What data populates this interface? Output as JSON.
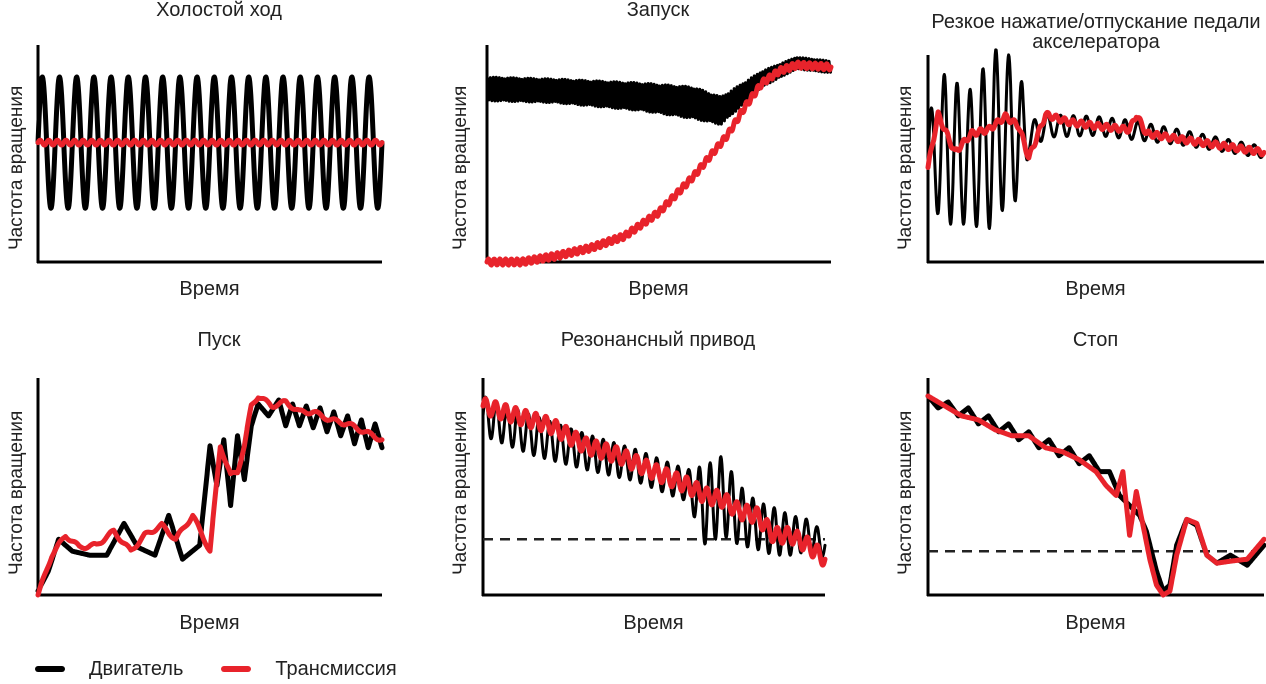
{
  "legend": {
    "engine": "Двигатель",
    "transmission": "Трансмиссия"
  },
  "colors": {
    "engine": "#000000",
    "transmission": "#e8232b",
    "threshold": "#222222"
  },
  "chart_data": [
    {
      "type": "line",
      "title": "Холостой ход",
      "xlabel": "Время",
      "ylabel": "Частота вращения",
      "xlim": [
        0,
        1
      ],
      "ylim": [
        0,
        1
      ],
      "series": [
        {
          "name": "Двигатель",
          "shape": "sine",
          "x": [
            0,
            1
          ],
          "center": [
            0.6,
            0.6
          ],
          "amplitude": [
            0.33,
            0.33
          ],
          "cycles": 20
        },
        {
          "name": "Трансмиссия",
          "x": [
            0,
            0.25,
            0.5,
            0.75,
            1
          ],
          "y": [
            0.6,
            0.6,
            0.6,
            0.6,
            0.6
          ],
          "ripple": 0.012,
          "cycles": 40
        }
      ]
    },
    {
      "type": "line",
      "title": "Запуск",
      "xlabel": "Время",
      "ylabel": "Частота вращения",
      "xlim": [
        0,
        1
      ],
      "ylim": [
        0,
        1
      ],
      "series": [
        {
          "name": "Двигатель",
          "shape": "band",
          "x": [
            0,
            0.2,
            0.45,
            0.6,
            0.68,
            0.8,
            0.9,
            1
          ],
          "center": [
            0.87,
            0.86,
            0.83,
            0.8,
            0.76,
            0.92,
            1.0,
            0.98
          ],
          "halfwidth": [
            0.06,
            0.06,
            0.07,
            0.08,
            0.07,
            0.04,
            0.03,
            0.03
          ],
          "cycles": 120
        },
        {
          "name": "Трансмиссия",
          "x": [
            0,
            0.1,
            0.2,
            0.3,
            0.4,
            0.5,
            0.6,
            0.7,
            0.75,
            0.8,
            0.85,
            0.9,
            1
          ],
          "y": [
            0.0,
            0.0,
            0.03,
            0.07,
            0.13,
            0.25,
            0.43,
            0.64,
            0.78,
            0.9,
            0.96,
            0.99,
            0.98
          ],
          "ripple": 0.015,
          "cycles": 60
        }
      ]
    },
    {
      "type": "line",
      "title": "Резкое нажатие/отпускание педали акселератора",
      "xlabel": "Время",
      "ylabel": "Частота вращения",
      "xlim": [
        0,
        1
      ],
      "ylim": [
        0,
        1
      ],
      "series": [
        {
          "name": "Двигатель",
          "shape": "band",
          "x": [
            0,
            0.05,
            0.12,
            0.18,
            0.22,
            0.28,
            0.3,
            0.35,
            0.5,
            0.6,
            0.75,
            1
          ],
          "center": [
            0.55,
            0.6,
            0.55,
            0.62,
            0.72,
            0.65,
            0.66,
            0.72,
            0.72,
            0.7,
            0.66,
            0.58
          ],
          "halfwidth": [
            0.22,
            0.4,
            0.35,
            0.45,
            0.45,
            0.3,
            0.08,
            0.06,
            0.05,
            0.05,
            0.04,
            0.03
          ],
          "cycles": 26
        },
        {
          "name": "Трансмиссия",
          "x": [
            0,
            0.03,
            0.08,
            0.13,
            0.18,
            0.23,
            0.27,
            0.3,
            0.35,
            0.42,
            0.5,
            0.6,
            0.62,
            0.65,
            0.75,
            1
          ],
          "y": [
            0.5,
            0.78,
            0.58,
            0.68,
            0.7,
            0.77,
            0.72,
            0.55,
            0.78,
            0.74,
            0.72,
            0.7,
            0.78,
            0.68,
            0.65,
            0.58
          ],
          "ripple": 0.015,
          "cycles": 40
        }
      ]
    },
    {
      "type": "line",
      "title": "Пуск",
      "xlabel": "Время",
      "ylabel": "Частота вращения",
      "xlim": [
        0,
        1
      ],
      "ylim": [
        0,
        1
      ],
      "series": [
        {
          "name": "Двигатель",
          "x": [
            0,
            0.03,
            0.06,
            0.1,
            0.15,
            0.2,
            0.25,
            0.29,
            0.34,
            0.38,
            0.42,
            0.47,
            0.5,
            0.52,
            0.54,
            0.56,
            0.58,
            0.6,
            0.62,
            0.64,
            0.67,
            0.7,
            0.72,
            0.74,
            0.76,
            0.78,
            0.8,
            0.82,
            0.84,
            0.86,
            0.88,
            0.9,
            0.92,
            0.94,
            0.96,
            0.98,
            1
          ],
          "y": [
            0.02,
            0.12,
            0.28,
            0.22,
            0.2,
            0.2,
            0.36,
            0.24,
            0.2,
            0.4,
            0.18,
            0.25,
            0.75,
            0.55,
            0.78,
            0.45,
            0.8,
            0.58,
            0.85,
            0.96,
            0.9,
            0.98,
            0.85,
            0.96,
            0.85,
            0.95,
            0.84,
            0.94,
            0.82,
            0.92,
            0.8,
            0.9,
            0.76,
            0.88,
            0.74,
            0.86,
            0.74
          ]
        },
        {
          "name": "Трансмиссия",
          "x": [
            0,
            0.04,
            0.08,
            0.12,
            0.17,
            0.22,
            0.27,
            0.31,
            0.36,
            0.4,
            0.45,
            0.5,
            0.53,
            0.56,
            0.58,
            0.6,
            0.62,
            0.64,
            0.68,
            0.72,
            0.76,
            0.8,
            0.85,
            0.9,
            0.95,
            1
          ],
          "y": [
            0.0,
            0.2,
            0.3,
            0.24,
            0.25,
            0.32,
            0.22,
            0.3,
            0.35,
            0.28,
            0.4,
            0.22,
            0.75,
            0.6,
            0.62,
            0.75,
            0.95,
            1.0,
            0.95,
            0.97,
            0.92,
            0.92,
            0.88,
            0.86,
            0.82,
            0.78
          ],
          "ripple": 0.01,
          "cycles": 20
        }
      ]
    },
    {
      "type": "line",
      "title": "Резонансный привод",
      "xlabel": "Время",
      "ylabel": "Частота вращения",
      "xlim": [
        0,
        1
      ],
      "ylim": [
        0,
        1
      ],
      "threshold": 0.28,
      "series": [
        {
          "name": "Двигатель",
          "shape": "band",
          "x": [
            0,
            0.15,
            0.3,
            0.45,
            0.55,
            0.6,
            0.65,
            0.7,
            0.75,
            0.8,
            0.85,
            0.9,
            0.95,
            1
          ],
          "center": [
            0.9,
            0.8,
            0.72,
            0.65,
            0.58,
            0.55,
            0.45,
            0.5,
            0.4,
            0.35,
            0.32,
            0.3,
            0.3,
            0.25
          ],
          "halfwidth": [
            0.1,
            0.1,
            0.09,
            0.08,
            0.08,
            0.08,
            0.2,
            0.2,
            0.15,
            0.12,
            0.12,
            0.1,
            0.08,
            0.06
          ],
          "cycles": 32
        },
        {
          "name": "Трансмиссия",
          "x": [
            0,
            0.1,
            0.2,
            0.3,
            0.4,
            0.5,
            0.6,
            0.65,
            0.7,
            0.75,
            0.8,
            0.85,
            0.9,
            0.95,
            1
          ],
          "y": [
            0.95,
            0.9,
            0.85,
            0.75,
            0.7,
            0.62,
            0.55,
            0.5,
            0.48,
            0.42,
            0.4,
            0.3,
            0.3,
            0.25,
            0.18
          ],
          "ripple": 0.04,
          "cycles": 34
        }
      ]
    },
    {
      "type": "line",
      "title": "Стоп",
      "xlabel": "Время",
      "ylabel": "Частота вращения",
      "xlim": [
        0,
        1
      ],
      "ylim": [
        0,
        1
      ],
      "threshold": 0.22,
      "series": [
        {
          "name": "Двигатель",
          "x": [
            0,
            0.03,
            0.06,
            0.09,
            0.12,
            0.15,
            0.18,
            0.21,
            0.24,
            0.27,
            0.3,
            0.33,
            0.36,
            0.39,
            0.42,
            0.45,
            0.48,
            0.51,
            0.54,
            0.57,
            0.6,
            0.63,
            0.65,
            0.68,
            0.7,
            0.72,
            0.74,
            0.77,
            0.8,
            0.83,
            0.86,
            0.9,
            0.95,
            1
          ],
          "y": [
            1.0,
            0.94,
            0.97,
            0.9,
            0.94,
            0.86,
            0.9,
            0.82,
            0.86,
            0.78,
            0.82,
            0.74,
            0.78,
            0.7,
            0.74,
            0.66,
            0.7,
            0.62,
            0.62,
            0.5,
            0.45,
            0.4,
            0.32,
            0.12,
            0.02,
            0.05,
            0.25,
            0.38,
            0.35,
            0.2,
            0.16,
            0.2,
            0.15,
            0.25
          ]
        },
        {
          "name": "Трансмиссия",
          "x": [
            0,
            0.05,
            0.1,
            0.15,
            0.2,
            0.25,
            0.3,
            0.35,
            0.4,
            0.45,
            0.5,
            0.53,
            0.56,
            0.58,
            0.6,
            0.62,
            0.64,
            0.66,
            0.68,
            0.7,
            0.72,
            0.74,
            0.77,
            0.8,
            0.83,
            0.86,
            0.9,
            0.95,
            1
          ],
          "y": [
            1.0,
            0.95,
            0.9,
            0.88,
            0.83,
            0.8,
            0.8,
            0.74,
            0.72,
            0.68,
            0.62,
            0.55,
            0.5,
            0.62,
            0.3,
            0.52,
            0.35,
            0.18,
            0.05,
            0.0,
            0.02,
            0.2,
            0.38,
            0.36,
            0.2,
            0.16,
            0.17,
            0.18,
            0.28
          ]
        }
      ]
    }
  ]
}
